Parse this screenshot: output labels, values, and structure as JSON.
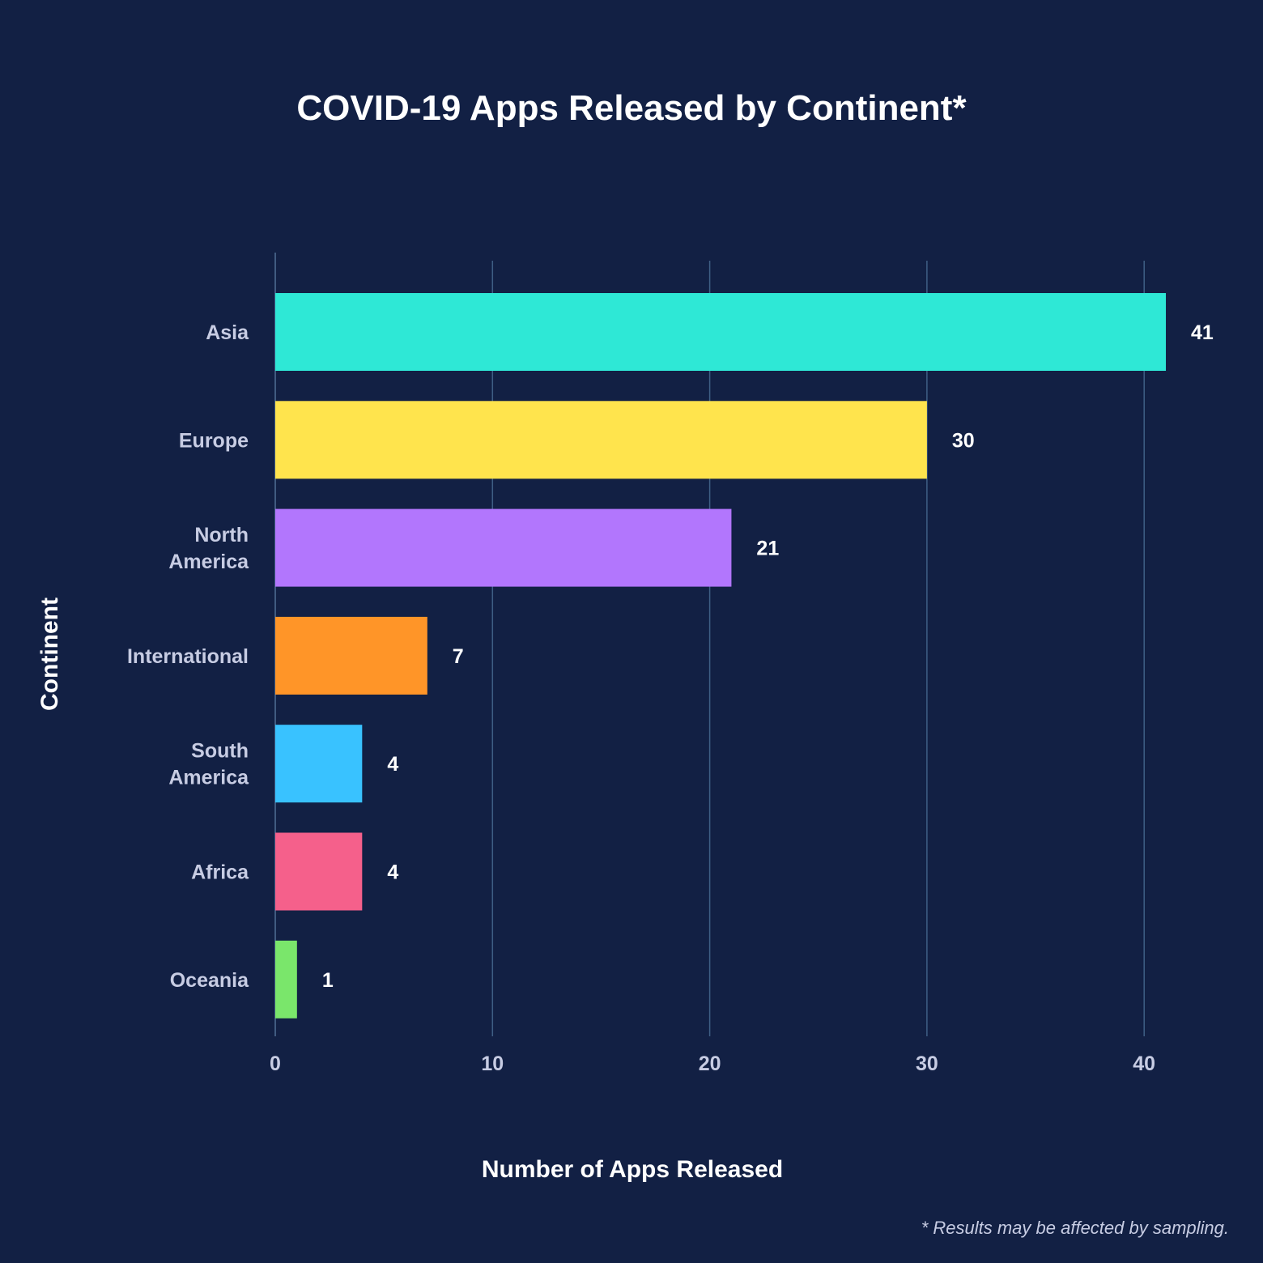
{
  "chart_data": {
    "type": "bar",
    "orientation": "horizontal",
    "title": "COVID-19 Apps Released by Continent*",
    "xlabel": "Number of Apps Released",
    "ylabel": "Continent",
    "categories": [
      "Asia",
      "Europe",
      "North America",
      "International",
      "South America",
      "Africa",
      "Oceania"
    ],
    "category_lines": [
      [
        "Asia"
      ],
      [
        "Europe"
      ],
      [
        "North",
        "America"
      ],
      [
        "International"
      ],
      [
        "South",
        "America"
      ],
      [
        "Africa"
      ],
      [
        "Oceania"
      ]
    ],
    "values": [
      41,
      30,
      21,
      7,
      4,
      4,
      1
    ],
    "value_labels": [
      "41",
      "30",
      "21",
      "7",
      "4",
      "4",
      "1"
    ],
    "colors": [
      "#2ee8d6",
      "#ffe44d",
      "#b276fd",
      "#ff9528",
      "#39c2ff",
      "#f5608b",
      "#7ae66b"
    ],
    "xlim": [
      0,
      42
    ],
    "xticks": [
      0,
      10,
      20,
      30,
      40
    ],
    "xtick_labels": [
      "0",
      "10",
      "20",
      "30",
      "40"
    ],
    "grid": true,
    "footnote": "* Results may be affected by sampling.",
    "background": "#122044"
  }
}
